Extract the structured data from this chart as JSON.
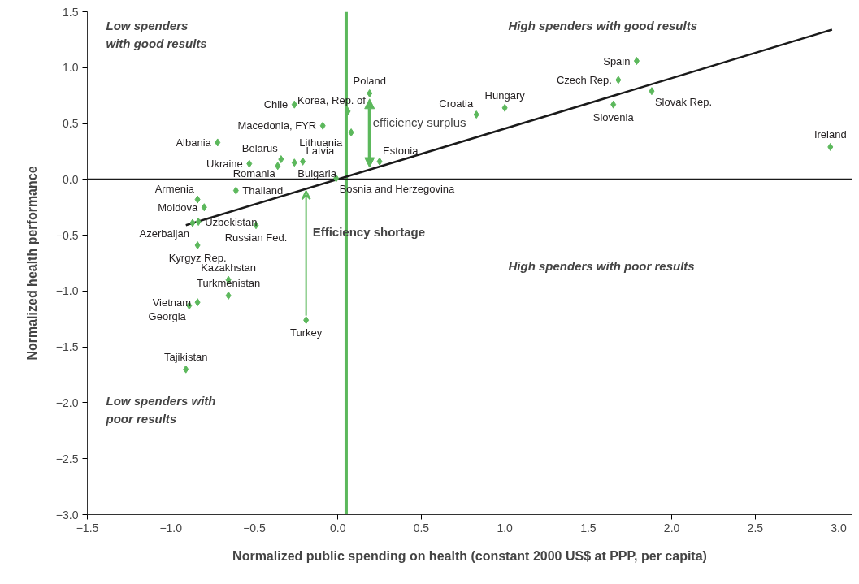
{
  "chart_data": {
    "type": "scatter",
    "xlabel": "Normalized public spending on health (constant 2000 US$ at PPP, per capita)",
    "ylabel": "Normalized health performance",
    "xlim": [
      -1.5,
      3.08
    ],
    "ylim": [
      -3.0,
      1.5
    ],
    "xticks": [
      {
        "value": -1.5,
        "label": "−1.5"
      },
      {
        "value": -1.0,
        "label": "−1.0"
      },
      {
        "value": -0.5,
        "label": "−0.5"
      },
      {
        "value": 0,
        "label": "0.0"
      },
      {
        "value": 0.5,
        "label": "0.5"
      },
      {
        "value": 1.0,
        "label": "1.0"
      },
      {
        "value": 1.5,
        "label": "1.5"
      },
      {
        "value": 2.0,
        "label": "2.0"
      },
      {
        "value": 2.5,
        "label": "2.5"
      },
      {
        "value": 3.0,
        "label": "3.0"
      }
    ],
    "yticks": [
      {
        "value": -3.0,
        "label": "−3.0"
      },
      {
        "value": -2.5,
        "label": "−2.5"
      },
      {
        "value": -2.0,
        "label": "−2.0"
      },
      {
        "value": -1.5,
        "label": "−1.5"
      },
      {
        "value": -1.0,
        "label": "−1.0"
      },
      {
        "value": -0.5,
        "label": "−0.5"
      },
      {
        "value": 0,
        "label": "0.0"
      },
      {
        "value": 0.5,
        "label": "0.5"
      },
      {
        "value": 1.0,
        "label": "1.0"
      },
      {
        "value": 1.5,
        "label": "1.5"
      }
    ],
    "grid": false,
    "series": [
      {
        "color": "#5cb85c",
        "marker": "diamond",
        "x": [
          -0.26,
          0.06,
          -0.09,
          0.08,
          -0.72,
          -0.34,
          -0.21,
          -0.26,
          -0.36,
          -0.53,
          -0.01,
          -0.61,
          -0.84,
          -0.8,
          -0.835,
          -0.87,
          -0.49,
          -0.84,
          -0.655,
          -0.655,
          -0.84,
          -0.89,
          -0.19,
          -0.91,
          0.19,
          0.83,
          1.0,
          0.25,
          1.79,
          1.68,
          1.88,
          1.65,
          2.95
        ],
        "values": [
          0.67,
          0.61,
          0.48,
          0.42,
          0.33,
          0.18,
          0.16,
          0.15,
          0.12,
          0.14,
          0.01,
          -0.1,
          -0.18,
          -0.25,
          -0.38,
          -0.39,
          -0.41,
          -0.59,
          -0.9,
          -1.04,
          -1.1,
          -1.13,
          -1.26,
          -1.7,
          0.77,
          0.58,
          0.64,
          0.16,
          1.06,
          0.89,
          0.79,
          0.67,
          0.29
        ],
        "value_labels": [
          "Chile",
          "Korea, Rep. of",
          "Macedonia, FYR",
          "Lithuania",
          "Albania",
          "Belarus",
          "Latvia",
          "Bulgaria",
          "Romania",
          "Ukraine",
          "Bosnia and Herzegovina",
          "Thailand",
          "Armenia",
          "Moldova",
          "Uzbekistan",
          "Azerbaijan",
          "Russian Fed.",
          "Kyrgyz Rep.",
          "Kazakhstan",
          "Turkmenistan",
          "Vietnam",
          "Georgia",
          "Turkey",
          "Tajikistan",
          "Poland",
          "Croatia",
          "Hungary",
          "Estonia",
          "Spain",
          "Czech Rep.",
          "Slovak Rep.",
          "Slovenia",
          "Ireland"
        ]
      },
      {
        "type": "line",
        "color": "#1a1a1a",
        "x": [
          -0.91,
          2.96
        ],
        "values": [
          -0.41,
          1.34
        ]
      }
    ],
    "ref_lines": [
      {
        "axis": "x",
        "value": 0.05,
        "color": "#5cb85c"
      },
      {
        "axis": "y",
        "value": 0,
        "color": "#1a1a1a"
      }
    ],
    "annotations": [
      "Low spenders with good results",
      "High spenders with good results",
      "High spenders with poor results",
      "Low spenders with poor results",
      "efficiency surplus",
      "Efficiency shortage"
    ]
  }
}
